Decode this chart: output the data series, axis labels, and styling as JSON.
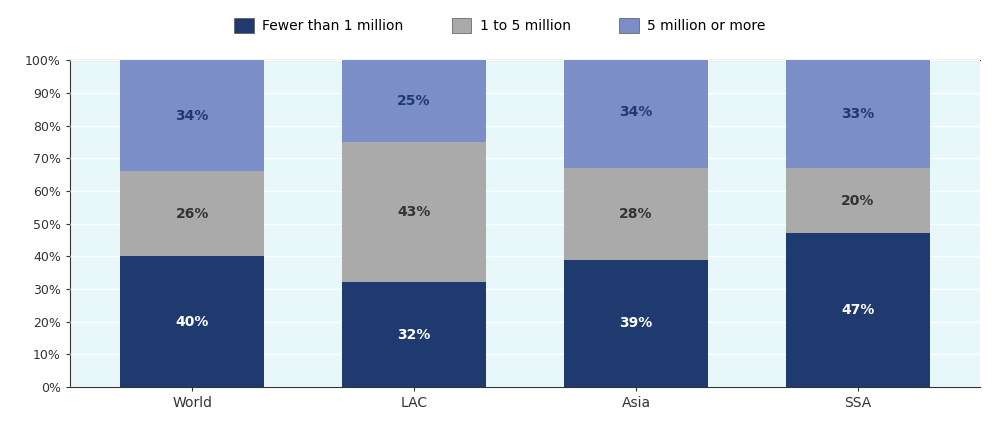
{
  "categories": [
    "World",
    "LAC",
    "Asia",
    "SSA"
  ],
  "series": {
    "fewer_than_1m": [
      40,
      32,
      39,
      47
    ],
    "1_to_5m": [
      26,
      43,
      28,
      20
    ],
    "5m_or_more": [
      34,
      25,
      34,
      33
    ]
  },
  "colors": {
    "fewer_than_1m": "#1f3a6e",
    "1_to_5m": "#aaaaaa",
    "5m_or_more": "#7b8ec8"
  },
  "plot_bg": "#e8f8fa",
  "figure_bg": "#ffffff",
  "legend_bg": "#cccccc",
  "legend_labels": [
    "Fewer than 1 million",
    "1 to 5 million",
    "5 million or more"
  ],
  "ylim": [
    0,
    100
  ],
  "yticks": [
    0,
    10,
    20,
    30,
    40,
    50,
    60,
    70,
    80,
    90,
    100
  ],
  "bar_width": 0.65,
  "grid_color": "#ffffff",
  "spine_color": "#333333"
}
